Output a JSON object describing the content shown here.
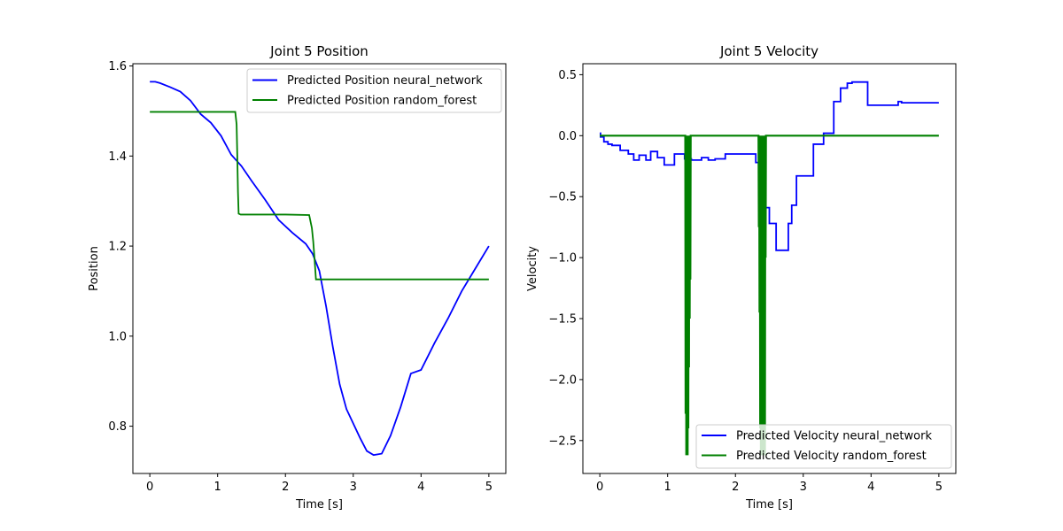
{
  "chart_data": [
    {
      "type": "line",
      "title": "Joint 5 Position",
      "xlabel": "Time [s]",
      "ylabel": "Position",
      "xlim": [
        -0.25,
        5.25
      ],
      "ylim": [
        0.695,
        1.605
      ],
      "xticks": [
        0,
        1,
        2,
        3,
        4,
        5
      ],
      "xtick_labels": [
        "0",
        "1",
        "2",
        "3",
        "4",
        "5"
      ],
      "yticks": [
        0.8,
        1.0,
        1.2,
        1.4,
        1.6
      ],
      "ytick_labels": [
        "0.8",
        "1.0",
        "1.2",
        "1.4",
        "1.6"
      ],
      "grid": false,
      "legend": "upper-right",
      "series": [
        {
          "name": "Predicted Position neural_network",
          "color": "#0000ff",
          "x": [
            0,
            0.08,
            0.15,
            0.3,
            0.45,
            0.6,
            0.75,
            0.9,
            1.05,
            1.2,
            1.35,
            1.5,
            1.7,
            1.9,
            2.1,
            2.3,
            2.4,
            2.5,
            2.6,
            2.7,
            2.8,
            2.9,
            3.0,
            3.1,
            3.2,
            3.3,
            3.42,
            3.55,
            3.7,
            3.85,
            4.0,
            4.2,
            4.4,
            4.6,
            4.8,
            5.0
          ],
          "y": [
            1.565,
            1.565,
            1.562,
            1.553,
            1.543,
            1.523,
            1.493,
            1.474,
            1.445,
            1.403,
            1.378,
            1.345,
            1.303,
            1.258,
            1.23,
            1.205,
            1.183,
            1.145,
            1.066,
            0.975,
            0.893,
            0.838,
            0.806,
            0.774,
            0.745,
            0.736,
            0.739,
            0.779,
            0.843,
            0.917,
            0.925,
            0.985,
            1.04,
            1.1,
            1.15,
            1.2
          ]
        },
        {
          "name": "Predicted Position random_forest",
          "color": "#008000",
          "x": [
            0,
            0.5,
            1.0,
            1.26,
            1.28,
            1.29,
            1.3,
            1.31,
            1.34,
            1.6,
            2.0,
            2.35,
            2.39,
            2.41,
            2.43,
            2.45,
            2.5,
            3.0,
            3.5,
            4.0,
            4.5,
            5.0
          ],
          "y": [
            1.498,
            1.498,
            1.498,
            1.498,
            1.47,
            1.4,
            1.32,
            1.272,
            1.27,
            1.27,
            1.27,
            1.269,
            1.24,
            1.21,
            1.17,
            1.126,
            1.126,
            1.126,
            1.126,
            1.126,
            1.126,
            1.126
          ]
        }
      ]
    },
    {
      "type": "line",
      "title": "Joint 5 Velocity",
      "xlabel": "Time [s]",
      "ylabel": "Velocity",
      "xlim": [
        -0.25,
        5.25
      ],
      "ylim": [
        -2.77,
        0.59
      ],
      "xticks": [
        0,
        1,
        2,
        3,
        4,
        5
      ],
      "xtick_labels": [
        "0",
        "1",
        "2",
        "3",
        "4",
        "5"
      ],
      "yticks": [
        -2.5,
        -2.0,
        -1.5,
        -1.0,
        -0.5,
        0.0,
        0.5
      ],
      "ytick_labels": [
        "−2.5",
        "−2.0",
        "−1.5",
        "−1.0",
        "−0.5",
        "0.0",
        "0.5"
      ],
      "grid": false,
      "legend": "lower-right",
      "series": [
        {
          "name": "Predicted Velocity neural_network",
          "color": "#0000ff",
          "x": [
            0,
            0.01,
            0.01,
            0.06,
            0.06,
            0.12,
            0.12,
            0.18,
            0.18,
            0.3,
            0.3,
            0.42,
            0.42,
            0.5,
            0.5,
            0.58,
            0.58,
            0.68,
            0.68,
            0.75,
            0.75,
            0.85,
            0.85,
            0.95,
            0.95,
            1.1,
            1.1,
            1.25,
            1.25,
            1.35,
            1.35,
            1.5,
            1.5,
            1.6,
            1.6,
            1.7,
            1.7,
            1.85,
            1.85,
            1.95,
            1.95,
            2.3,
            2.3,
            2.4,
            2.4,
            2.5,
            2.5,
            2.6,
            2.6,
            2.78,
            2.78,
            2.83,
            2.83,
            2.9,
            2.9,
            3.15,
            3.15,
            3.3,
            3.3,
            3.45,
            3.45,
            3.55,
            3.55,
            3.65,
            3.65,
            3.72,
            3.72,
            3.95,
            3.95,
            4.4,
            4.4,
            4.45,
            4.45,
            5.0
          ],
          "y": [
            0.02,
            0.02,
            -0.01,
            -0.01,
            -0.05,
            -0.05,
            -0.07,
            -0.07,
            -0.08,
            -0.08,
            -0.12,
            -0.12,
            -0.15,
            -0.15,
            -0.2,
            -0.2,
            -0.16,
            -0.16,
            -0.2,
            -0.2,
            -0.13,
            -0.13,
            -0.18,
            -0.18,
            -0.24,
            -0.24,
            -0.15,
            -0.15,
            -0.19,
            -0.19,
            -0.2,
            -0.2,
            -0.18,
            -0.18,
            -0.2,
            -0.2,
            -0.19,
            -0.19,
            -0.15,
            -0.15,
            -0.15,
            -0.15,
            -0.22,
            -0.22,
            -0.59,
            -0.59,
            -0.72,
            -0.72,
            -0.94,
            -0.94,
            -0.72,
            -0.72,
            -0.57,
            -0.57,
            -0.33,
            -0.33,
            -0.07,
            -0.07,
            0.02,
            0.02,
            0.28,
            0.28,
            0.39,
            0.39,
            0.43,
            0.43,
            0.44,
            0.44,
            0.25,
            0.25,
            0.28,
            0.28,
            0.27,
            0.27
          ]
        },
        {
          "name": "Predicted Velocity random_forest",
          "color": "#008000",
          "x": [
            0,
            1.26,
            1.265,
            1.27,
            1.275,
            1.28,
            1.285,
            1.29,
            1.295,
            1.3,
            1.305,
            1.31,
            1.315,
            1.32,
            1.325,
            1.33,
            1.335,
            1.34,
            2.34,
            2.345,
            2.35,
            2.355,
            2.36,
            2.365,
            2.37,
            2.375,
            2.38,
            2.385,
            2.39,
            2.395,
            2.4,
            2.405,
            2.41,
            2.415,
            2.42,
            2.425,
            2.43,
            2.435,
            2.44,
            2.445,
            2.45,
            5.0
          ],
          "y": [
            0.0,
            0.0,
            -2.28,
            0.0,
            -2.62,
            0.0,
            -2.62,
            0.0,
            -2.62,
            0.0,
            -2.4,
            0.0,
            -1.9,
            0.0,
            -1.5,
            0.0,
            -1.18,
            0.0,
            0.0,
            -0.75,
            0.0,
            -1.45,
            0.0,
            -2.4,
            0.0,
            -2.62,
            0.0,
            -2.62,
            0.0,
            -2.55,
            0.0,
            -2.62,
            0.0,
            -2.62,
            0.0,
            -2.38,
            0.0,
            -2.62,
            0.0,
            -1.0,
            0.0,
            0.0
          ]
        }
      ]
    }
  ]
}
